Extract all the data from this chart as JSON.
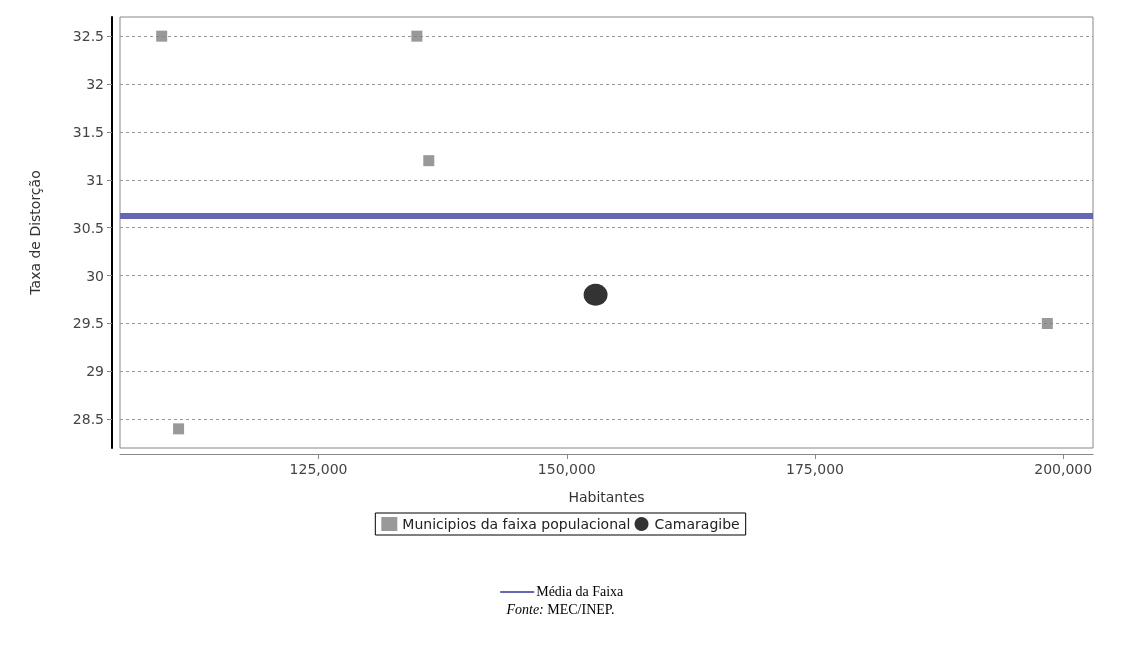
{
  "chart_data": {
    "type": "scatter",
    "xlabel": "Habitantes",
    "ylabel": "Taxa de Distorção",
    "xlim": [
      105000,
      203000
    ],
    "xticks": [
      {
        "value": 125000,
        "label": "125,000"
      },
      {
        "value": 150000,
        "label": "150,000"
      },
      {
        "value": 175000,
        "label": "175,000"
      },
      {
        "value": 200000,
        "label": "200,000"
      }
    ],
    "ylim": [
      28.2,
      32.7
    ],
    "yticks": [
      28.5,
      29,
      29.5,
      30,
      30.5,
      31,
      31.5,
      32,
      32.5
    ],
    "series": [
      {
        "name": "Municipios da faixa populacional",
        "color": "#808080",
        "marker": "square",
        "x": [
          109200,
          110900,
          134900,
          136100,
          198400
        ],
        "values": [
          32.5,
          28.4,
          32.5,
          31.2,
          29.5
        ]
      },
      {
        "name": "Camaragibe",
        "color": "#000000",
        "marker": "circle",
        "x": [
          152900
        ],
        "values": [
          29.8
        ]
      }
    ],
    "ref_lines": [
      {
        "axis": "y",
        "value": 30.63,
        "label": "Média da Faixa",
        "color": "#6666b4"
      }
    ],
    "annotations": [
      "Fonte: MEC/INEP."
    ],
    "grid": "y",
    "legend": "bottom"
  }
}
